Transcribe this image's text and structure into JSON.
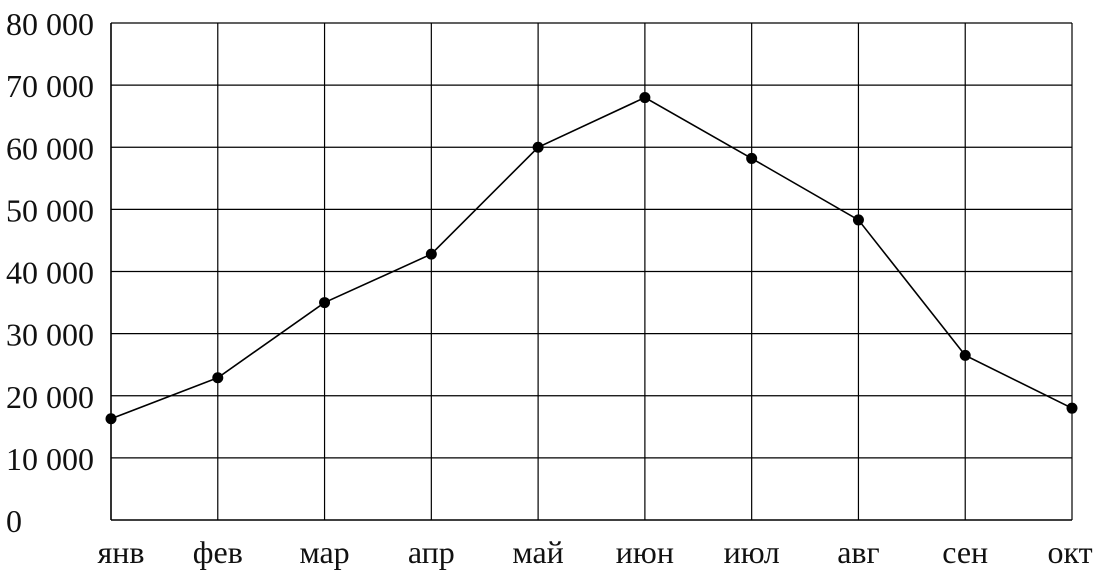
{
  "chart_data": {
    "type": "line",
    "categories": [
      "янв",
      "фев",
      "мар",
      "апр",
      "май",
      "июн",
      "июл",
      "авг",
      "сен",
      "окт"
    ],
    "series": [
      {
        "values": [
          16300,
          22900,
          35000,
          42800,
          60000,
          68000,
          58200,
          48300,
          26500,
          18000
        ]
      }
    ],
    "y_ticks": [
      "0",
      "10 000",
      "20 000",
      "30 000",
      "40 000",
      "50 000",
      "60 000",
      "70 000",
      "80 000"
    ],
    "ylim": [
      0,
      80000
    ],
    "grid": true,
    "markers": true,
    "colors": {
      "line": "#000000",
      "grid": "#000000",
      "text": "#111111",
      "background": "#ffffff"
    }
  }
}
